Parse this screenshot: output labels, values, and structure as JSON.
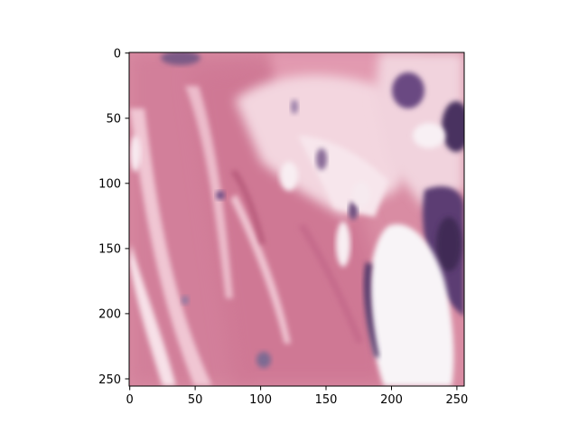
{
  "figure": {
    "kind": "image-display",
    "subject": "histology tissue patch",
    "title": "",
    "xlabel": "",
    "ylabel": ""
  },
  "axes": {
    "x": {
      "range": [
        0,
        256
      ],
      "ticks": [
        0,
        50,
        100,
        150,
        200,
        250
      ],
      "tick_labels": [
        "0",
        "50",
        "100",
        "150",
        "200",
        "250"
      ]
    },
    "y": {
      "range": [
        0,
        256
      ],
      "inverted": true,
      "ticks": [
        0,
        50,
        100,
        150,
        200,
        250
      ],
      "tick_labels": [
        "0",
        "50",
        "100",
        "150",
        "200",
        "250"
      ]
    },
    "grid": false
  },
  "colors": {
    "background": "#ffffff",
    "axis": "#000000",
    "tissue_pink": "#dc8fa6",
    "tissue_deep_pink": "#c46b89",
    "tissue_light": "#f6dfe7",
    "nucleus_purple": "#5b3d73",
    "lumen_white": "#f7f3f6"
  }
}
